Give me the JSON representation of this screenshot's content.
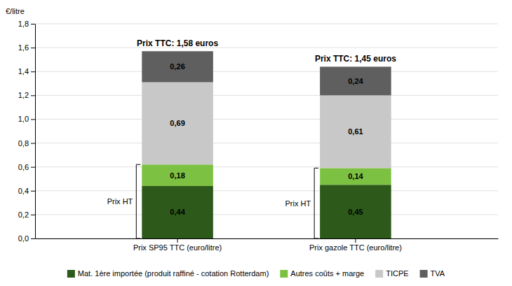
{
  "chart_data": {
    "type": "bar",
    "stacked": true,
    "categories": [
      "Prix SP95 TTC (euro/litre)",
      "Prix gazole TTC (euro/litre)"
    ],
    "series": [
      {
        "name": "Mat. 1ère importée (produit raffiné - cotation Rotterdam)",
        "color": "#2d5a1b",
        "values": [
          0.44,
          0.45
        ],
        "value_labels": [
          "0,44",
          "0,45"
        ]
      },
      {
        "name": "Autres coûts + marge",
        "color": "#7dc142",
        "values": [
          0.18,
          0.14
        ],
        "value_labels": [
          "0,18",
          "0,14"
        ]
      },
      {
        "name": "TICPE",
        "color": "#c8c8c8",
        "values": [
          0.69,
          0.61
        ],
        "value_labels": [
          "0,69",
          "0,61"
        ]
      },
      {
        "name": "TVA",
        "color": "#5f5f5f",
        "values": [
          0.26,
          0.24
        ],
        "value_labels": [
          "0,26",
          "0,24"
        ]
      }
    ],
    "data_labels": true,
    "annotations": [
      "Prix TTC: 1,58 euros",
      "Prix TTC: 1,45 euros"
    ],
    "prix_ht": {
      "label": "Prix HT",
      "values": [
        0.62,
        0.59
      ]
    },
    "y_label": "€/litre",
    "ylim": [
      0.0,
      1.8
    ],
    "yticks": [
      {
        "value": 0.0,
        "label": "0,0"
      },
      {
        "value": 0.2,
        "label": "0,2"
      },
      {
        "value": 0.4,
        "label": "0,4"
      },
      {
        "value": 0.6,
        "label": "0,6"
      },
      {
        "value": 0.8,
        "label": "0,8"
      },
      {
        "value": 1.0,
        "label": "1,0"
      },
      {
        "value": 1.2,
        "label": "1,2"
      },
      {
        "value": 1.4,
        "label": "1,4"
      },
      {
        "value": 1.6,
        "label": "1,6"
      },
      {
        "value": 1.8,
        "label": "1,8"
      }
    ],
    "grid": true,
    "legend": "bottom"
  }
}
